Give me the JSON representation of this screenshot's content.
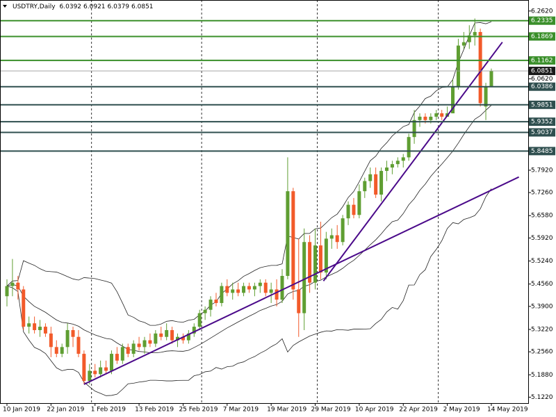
{
  "chart_data": {
    "type": "candlestick",
    "title": "USDTRY,Daily",
    "categories": [
      "10 Jan 2019",
      null,
      null,
      null,
      null,
      null,
      null,
      null,
      "22 Jan 2019",
      null,
      null,
      null,
      null,
      null,
      null,
      null,
      "1 Feb 2019",
      null,
      null,
      null,
      null,
      null,
      null,
      null,
      "13 Feb 2019",
      null,
      null,
      null,
      null,
      null,
      null,
      null,
      "25 Feb 2019",
      null,
      null,
      null,
      null,
      null,
      null,
      null,
      "7 Mar 2019",
      null,
      null,
      null,
      null,
      null,
      null,
      null,
      "19 Mar 2019",
      null,
      null,
      null,
      null,
      null,
      null,
      null,
      "29 Mar 2019",
      null,
      null,
      null,
      null,
      null,
      null,
      null,
      "10 Apr 2019",
      null,
      null,
      null,
      null,
      null,
      null,
      null,
      "22 Apr 2019",
      null,
      null,
      null,
      null,
      null,
      null,
      null,
      "2 May 2019",
      null,
      null,
      null,
      null,
      null,
      null,
      null,
      "14 May 2019"
    ],
    "ohlc": [
      [
        5.42,
        5.47,
        5.39,
        5.45
      ],
      [
        5.45,
        5.53,
        5.42,
        5.46
      ],
      [
        5.46,
        5.48,
        5.41,
        5.44
      ],
      [
        5.44,
        5.45,
        5.32,
        5.33
      ],
      [
        5.33,
        5.36,
        5.31,
        5.34
      ],
      [
        5.34,
        5.36,
        5.31,
        5.32
      ],
      [
        5.32,
        5.35,
        5.3,
        5.33
      ],
      [
        5.33,
        5.34,
        5.3,
        5.31
      ],
      [
        5.31,
        5.33,
        5.24,
        5.27
      ],
      [
        5.27,
        5.29,
        5.24,
        5.25
      ],
      [
        5.25,
        5.28,
        5.24,
        5.27
      ],
      [
        5.27,
        5.34,
        5.25,
        5.32
      ],
      [
        5.32,
        5.33,
        5.27,
        5.3
      ],
      [
        5.3,
        5.32,
        5.24,
        5.25
      ],
      [
        5.25,
        5.26,
        5.16,
        5.17
      ],
      [
        5.17,
        5.22,
        5.16,
        5.2
      ],
      [
        5.2,
        5.22,
        5.18,
        5.19
      ],
      [
        5.19,
        5.23,
        5.18,
        5.21
      ],
      [
        5.21,
        5.23,
        5.19,
        5.2
      ],
      [
        5.2,
        5.26,
        5.19,
        5.25
      ],
      [
        5.25,
        5.27,
        5.22,
        5.23
      ],
      [
        5.23,
        5.28,
        5.22,
        5.27
      ],
      [
        5.27,
        5.28,
        5.24,
        5.25
      ],
      [
        5.25,
        5.29,
        5.24,
        5.28
      ],
      [
        5.28,
        5.3,
        5.26,
        5.27
      ],
      [
        5.27,
        5.3,
        5.25,
        5.29
      ],
      [
        5.29,
        5.31,
        5.27,
        5.28
      ],
      [
        5.28,
        5.32,
        5.27,
        5.31
      ],
      [
        5.31,
        5.33,
        5.29,
        5.3
      ],
      [
        5.3,
        5.34,
        5.29,
        5.32
      ],
      [
        5.32,
        5.33,
        5.28,
        5.29
      ],
      [
        5.29,
        5.31,
        5.27,
        5.3
      ],
      [
        5.3,
        5.31,
        5.28,
        5.29
      ],
      [
        5.29,
        5.32,
        5.28,
        5.31
      ],
      [
        5.31,
        5.34,
        5.3,
        5.33
      ],
      [
        5.33,
        5.38,
        5.32,
        5.37
      ],
      [
        5.37,
        5.39,
        5.35,
        5.38
      ],
      [
        5.38,
        5.42,
        5.36,
        5.41
      ],
      [
        5.41,
        5.43,
        5.39,
        5.4
      ],
      [
        5.4,
        5.46,
        5.39,
        5.45
      ],
      [
        5.45,
        5.47,
        5.42,
        5.43
      ],
      [
        5.43,
        5.46,
        5.41,
        5.44
      ],
      [
        5.44,
        5.46,
        5.42,
        5.43
      ],
      [
        5.43,
        5.46,
        5.42,
        5.45
      ],
      [
        5.45,
        5.46,
        5.43,
        5.44
      ],
      [
        5.44,
        5.46,
        5.42,
        5.45
      ],
      [
        5.45,
        5.47,
        5.43,
        5.46
      ],
      [
        5.46,
        5.47,
        5.42,
        5.43
      ],
      [
        5.43,
        5.46,
        5.4,
        5.44
      ],
      [
        5.44,
        5.47,
        5.39,
        5.41
      ],
      [
        5.41,
        5.5,
        5.4,
        5.48
      ],
      [
        5.48,
        5.83,
        5.47,
        5.73
      ],
      [
        5.73,
        5.74,
        5.41,
        5.44
      ],
      [
        5.44,
        5.59,
        5.3,
        5.37
      ],
      [
        5.37,
        5.62,
        5.32,
        5.58
      ],
      [
        5.58,
        5.6,
        5.43,
        5.46
      ],
      [
        5.46,
        5.62,
        5.44,
        5.57
      ],
      [
        5.57,
        5.64,
        5.47,
        5.49
      ],
      [
        5.49,
        5.61,
        5.47,
        5.59
      ],
      [
        5.59,
        5.62,
        5.56,
        5.6
      ],
      [
        5.6,
        5.63,
        5.56,
        5.58
      ],
      [
        5.58,
        5.66,
        5.57,
        5.65
      ],
      [
        5.65,
        5.7,
        5.63,
        5.69
      ],
      [
        5.69,
        5.71,
        5.65,
        5.66
      ],
      [
        5.66,
        5.75,
        5.65,
        5.73
      ],
      [
        5.73,
        5.77,
        5.71,
        5.76
      ],
      [
        5.76,
        5.8,
        5.74,
        5.78
      ],
      [
        5.78,
        5.8,
        5.71,
        5.72
      ],
      [
        5.72,
        5.8,
        5.7,
        5.79
      ],
      [
        5.79,
        5.82,
        5.76,
        5.8
      ],
      [
        5.8,
        5.82,
        5.78,
        5.81
      ],
      [
        5.81,
        5.83,
        5.8,
        5.82
      ],
      [
        5.82,
        5.84,
        5.8,
        5.83
      ],
      [
        5.83,
        5.9,
        5.82,
        5.89
      ],
      [
        5.89,
        5.97,
        5.87,
        5.94
      ],
      [
        5.94,
        5.96,
        5.92,
        5.95
      ],
      [
        5.95,
        5.96,
        5.93,
        5.94
      ],
      [
        5.94,
        5.96,
        5.93,
        5.95
      ],
      [
        5.95,
        5.97,
        5.94,
        5.96
      ],
      [
        5.96,
        5.97,
        5.94,
        5.95
      ],
      [
        5.95,
        5.98,
        5.95,
        5.96
      ],
      [
        5.96,
        6.06,
        5.96,
        6.04
      ],
      [
        6.04,
        6.18,
        6.03,
        6.16
      ],
      [
        6.16,
        6.2,
        6.15,
        6.17
      ],
      [
        6.17,
        6.22,
        6.15,
        6.19
      ],
      [
        6.19,
        6.24,
        6.16,
        6.2
      ],
      [
        6.2,
        6.21,
        5.98,
        5.99
      ],
      [
        5.98,
        6.05,
        5.94,
        6.04
      ],
      [
        6.0392,
        6.0921,
        6.0379,
        6.0851
      ]
    ],
    "up_color": "#5f9e32",
    "down_color": "#f25a2a",
    "levels": [
      {
        "value": 6.2335,
        "color": "#3a8f2a"
      },
      {
        "value": 6.1869,
        "color": "#3a8f2a"
      },
      {
        "value": 6.1162,
        "color": "#3a8f2a"
      },
      {
        "value": 6.0386,
        "color": "#2f4f4f"
      },
      {
        "value": 5.9851,
        "color": "#2f4f4f"
      },
      {
        "value": 5.9352,
        "color": "#2f4f4f"
      },
      {
        "value": 5.9037,
        "color": "#2f4f4f"
      },
      {
        "value": 5.8485,
        "color": "#2f4f4f"
      }
    ],
    "trendlines": [
      [
        [
          14,
          5.16
        ],
        [
          93,
          5.772
        ]
      ],
      [
        [
          57.5,
          5.465
        ],
        [
          90,
          6.17
        ]
      ]
    ],
    "trendline_color": "#4b0a8a",
    "ylim": [
      5.1045,
      6.2945
    ],
    "yticks": [
      {
        "value": 6.262,
        "label": "6.2620"
      },
      {
        "value": 6.062,
        "label": "6.0620"
      },
      {
        "value": 5.792,
        "label": "5.7920"
      },
      {
        "value": 5.726,
        "label": "5.7260"
      },
      {
        "value": 5.658,
        "label": "5.6580"
      },
      {
        "value": 5.592,
        "label": "5.5920"
      },
      {
        "value": 5.524,
        "label": "5.5240"
      },
      {
        "value": 5.456,
        "label": "5.4560"
      },
      {
        "value": 5.39,
        "label": "5.3900"
      },
      {
        "value": 5.322,
        "label": "5.3220"
      },
      {
        "value": 5.256,
        "label": "5.2560"
      },
      {
        "value": 5.188,
        "label": "5.1880"
      },
      {
        "value": 5.122,
        "label": "5.1220"
      }
    ]
  }
}
